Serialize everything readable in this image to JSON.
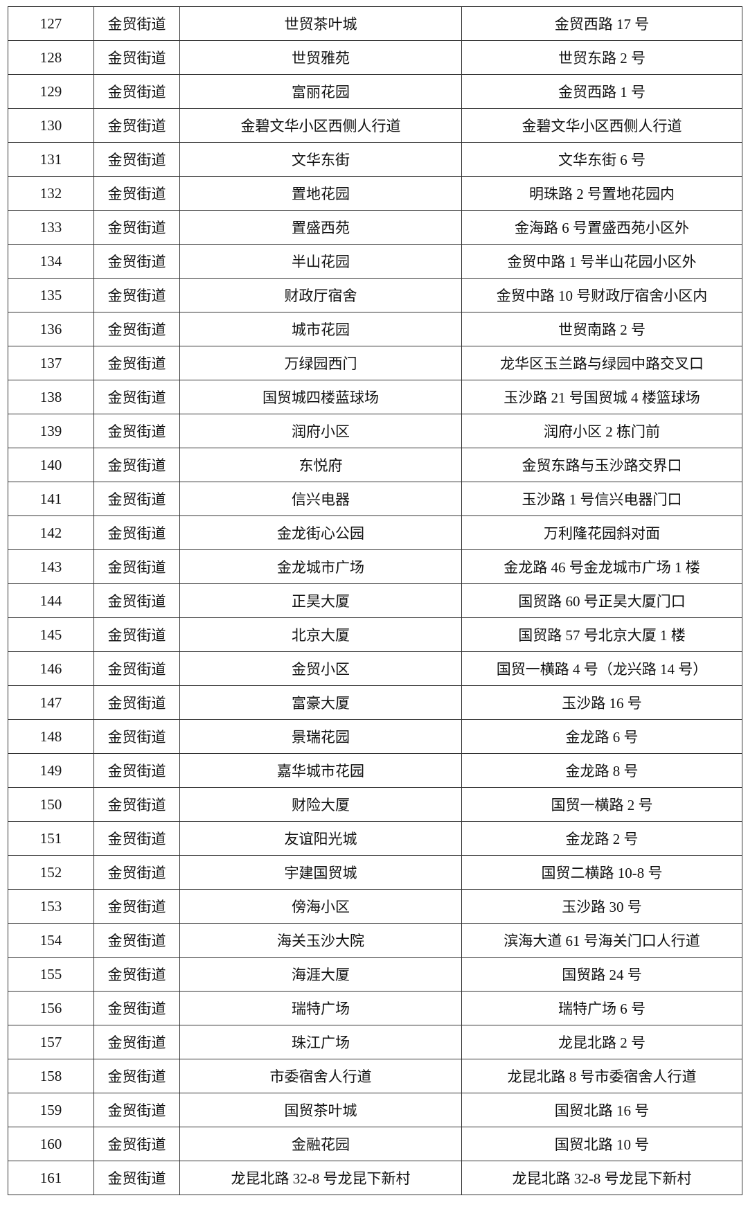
{
  "table": {
    "rows": [
      [
        "127",
        "金贸街道",
        "世贸茶叶城",
        "金贸西路 17 号"
      ],
      [
        "128",
        "金贸街道",
        "世贸雅苑",
        "世贸东路 2 号"
      ],
      [
        "129",
        "金贸街道",
        "富丽花园",
        "金贸西路 1 号"
      ],
      [
        "130",
        "金贸街道",
        "金碧文华小区西侧人行道",
        "金碧文华小区西侧人行道"
      ],
      [
        "131",
        "金贸街道",
        "文华东街",
        "文华东街 6 号"
      ],
      [
        "132",
        "金贸街道",
        "置地花园",
        "明珠路 2 号置地花园内"
      ],
      [
        "133",
        "金贸街道",
        "置盛西苑",
        "金海路 6 号置盛西苑小区外"
      ],
      [
        "134",
        "金贸街道",
        "半山花园",
        "金贸中路 1 号半山花园小区外"
      ],
      [
        "135",
        "金贸街道",
        "财政厅宿舍",
        "金贸中路 10 号财政厅宿舍小区内"
      ],
      [
        "136",
        "金贸街道",
        "城市花园",
        "世贸南路 2 号"
      ],
      [
        "137",
        "金贸街道",
        "万绿园西门",
        "龙华区玉兰路与绿园中路交叉口"
      ],
      [
        "138",
        "金贸街道",
        "国贸城四楼蓝球场",
        "玉沙路 21 号国贸城 4 楼篮球场"
      ],
      [
        "139",
        "金贸街道",
        "润府小区",
        "润府小区 2 栋门前"
      ],
      [
        "140",
        "金贸街道",
        "东悦府",
        "金贸东路与玉沙路交界口"
      ],
      [
        "141",
        "金贸街道",
        "信兴电器",
        "玉沙路 1 号信兴电器门口"
      ],
      [
        "142",
        "金贸街道",
        "金龙街心公园",
        "万利隆花园斜对面"
      ],
      [
        "143",
        "金贸街道",
        "金龙城市广场",
        "金龙路 46 号金龙城市广场 1 楼"
      ],
      [
        "144",
        "金贸街道",
        "正昊大厦",
        "国贸路 60 号正昊大厦门口"
      ],
      [
        "145",
        "金贸街道",
        "北京大厦",
        "国贸路 57 号北京大厦 1 楼"
      ],
      [
        "146",
        "金贸街道",
        "金贸小区",
        "国贸一横路 4 号（龙兴路 14 号）"
      ],
      [
        "147",
        "金贸街道",
        "富豪大厦",
        "玉沙路 16 号"
      ],
      [
        "148",
        "金贸街道",
        "景瑞花园",
        "金龙路 6 号"
      ],
      [
        "149",
        "金贸街道",
        "嘉华城市花园",
        "金龙路 8 号"
      ],
      [
        "150",
        "金贸街道",
        "财险大厦",
        "国贸一横路 2 号"
      ],
      [
        "151",
        "金贸街道",
        "友谊阳光城",
        "金龙路 2 号"
      ],
      [
        "152",
        "金贸街道",
        "宇建国贸城",
        "国贸二横路 10-8 号"
      ],
      [
        "153",
        "金贸街道",
        "傍海小区",
        "玉沙路 30 号"
      ],
      [
        "154",
        "金贸街道",
        "海关玉沙大院",
        "滨海大道 61 号海关门口人行道"
      ],
      [
        "155",
        "金贸街道",
        "海涯大厦",
        "国贸路 24 号"
      ],
      [
        "156",
        "金贸街道",
        "瑞特广场",
        "瑞特广场 6 号"
      ],
      [
        "157",
        "金贸街道",
        "珠江广场",
        "龙昆北路 2 号"
      ],
      [
        "158",
        "金贸街道",
        "市委宿舍人行道",
        "龙昆北路 8 号市委宿舍人行道"
      ],
      [
        "159",
        "金贸街道",
        "国贸茶叶城",
        "国贸北路 16 号"
      ],
      [
        "160",
        "金贸街道",
        "金融花园",
        "国贸北路 10 号"
      ],
      [
        "161",
        "金贸街道",
        "龙昆北路 32-8 号龙昆下新村",
        "龙昆北路 32-8 号龙昆下新村"
      ]
    ]
  }
}
